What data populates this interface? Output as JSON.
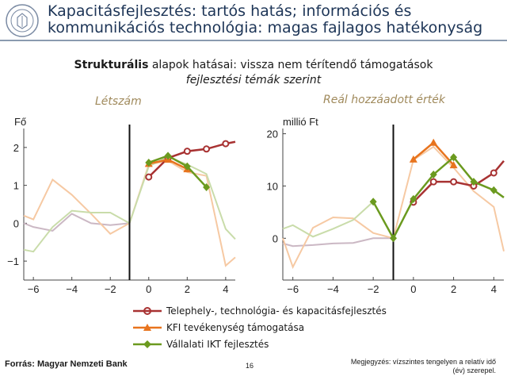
{
  "slide": {
    "title_line1": "Kapacitásfejlesztés: tartós hatás; információs és",
    "title_line2": "kommunikációs technológia: magas fajlagos hatékonyság",
    "subtitle_bold": "Strukturális",
    "subtitle_rest": " alapok hatásai: vissza nem térítendő támogatások",
    "subtitle2": "fejlesztési témák szerint",
    "source": "Forrás: Magyar Nemzeti Bank",
    "page_number": "16",
    "note": "Megjegyzés: vízszintes tengelyen a relatív idő (év) szerepel."
  },
  "legend": [
    {
      "label": "Telephely-, technológia- és kapacitásfejlesztés",
      "color": "#a83232",
      "marker": "circle"
    },
    {
      "label": "KFI tevékenység támogatása",
      "color": "#e8741e",
      "marker": "triangle"
    },
    {
      "label": "Vállalati IKT fejlesztés",
      "color": "#6b9a1f",
      "marker": "diamond"
    }
  ],
  "colors": {
    "main_series": [
      "#a83232",
      "#e8741e",
      "#6b9a1f"
    ],
    "faded_series": [
      "#cbb8c4",
      "#f6c9a3",
      "#c9dcaa"
    ],
    "panel_title": "#a08a5c"
  },
  "chart_data": [
    {
      "type": "line",
      "title": "Létszám",
      "ylabel": "Fő",
      "xlim": [
        -6.5,
        4.5
      ],
      "ylim": [
        -1.5,
        2.5
      ],
      "xticks": [
        -6,
        -4,
        -2,
        0,
        2,
        4
      ],
      "xtick_labels": [
        "−6",
        "−4",
        "−2",
        "0",
        "2",
        "4"
      ],
      "yticks": [
        -1,
        0,
        1,
        2
      ],
      "ytick_labels": [
        "−1",
        "0",
        "1",
        "2"
      ],
      "vline_x": -1,
      "series": [
        {
          "x": [
            0,
            1,
            2,
            3,
            4,
            4.5
          ],
          "y": [
            1.22,
            1.72,
            1.9,
            1.96,
            2.1,
            2.15
          ]
        },
        {
          "x": [
            0,
            1,
            2
          ],
          "y": [
            1.57,
            1.68,
            1.43
          ]
        },
        {
          "x": [
            0,
            1,
            2,
            3
          ],
          "y": [
            1.6,
            1.78,
            1.5,
            0.95
          ]
        }
      ],
      "faded_series": [
        {
          "x": [
            -6.5,
            -6,
            -5,
            -4,
            -3,
            -2,
            -1
          ],
          "y": [
            0.0,
            -0.1,
            -0.2,
            0.25,
            0.0,
            -0.05,
            0.0
          ]
        },
        {
          "x": [
            -6.5,
            -6,
            -5,
            -4,
            -3,
            -2,
            -1,
            0,
            1,
            2,
            3,
            4,
            4.5
          ],
          "y": [
            0.2,
            0.1,
            1.15,
            0.75,
            0.25,
            -0.28,
            0.0,
            1.55,
            1.65,
            1.35,
            1.25,
            -1.12,
            -0.9
          ]
        },
        {
          "x": [
            -6.5,
            -6,
            -5,
            -4,
            -3,
            -2,
            -1,
            0,
            1,
            2,
            3,
            4,
            4.5
          ],
          "y": [
            -0.7,
            -0.75,
            -0.1,
            0.33,
            0.28,
            0.28,
            0.0,
            1.5,
            1.75,
            1.55,
            1.3,
            -0.15,
            -0.42
          ]
        }
      ]
    },
    {
      "type": "line",
      "title": "Reál hozzáadott érték",
      "ylabel": "millió Ft",
      "xlim": [
        -6.5,
        4.5
      ],
      "ylim": [
        -8,
        21
      ],
      "xticks": [
        -6,
        -4,
        -2,
        0,
        2,
        4
      ],
      "xtick_labels": [
        "−6",
        "−4",
        "−2",
        "0",
        "2",
        "4"
      ],
      "yticks": [
        0,
        10,
        20
      ],
      "ytick_labels": [
        "0",
        "10",
        "20"
      ],
      "vline_x": -1,
      "series": [
        {
          "x": [
            0,
            1,
            2,
            3,
            4,
            4.5
          ],
          "y": [
            6.9,
            10.8,
            10.8,
            10.0,
            12.5,
            14.8
          ]
        },
        {
          "x": [
            0,
            1,
            2
          ],
          "y": [
            15.1,
            18.3,
            14.0
          ]
        },
        {
          "x": [
            -2,
            -1,
            0,
            1,
            2,
            3,
            4,
            4.5
          ],
          "y": [
            7.0,
            0.0,
            7.5,
            12.2,
            15.5,
            10.8,
            9.2,
            7.8
          ]
        }
      ],
      "faded_series": [
        {
          "x": [
            -6.5,
            -6,
            -5,
            -4,
            -3,
            -2,
            -1
          ],
          "y": [
            -1.0,
            -1.5,
            -1.3,
            -1.0,
            -0.9,
            0.0,
            0.0
          ]
        },
        {
          "x": [
            -6.5,
            -6,
            -5,
            -4,
            -3,
            -2,
            -1,
            0,
            1,
            2,
            3,
            4,
            4.5
          ],
          "y": [
            0.0,
            -5.5,
            2.0,
            4.0,
            3.8,
            1.0,
            0.0,
            15.0,
            17.5,
            13.5,
            9.0,
            6.0,
            -2.5
          ]
        },
        {
          "x": [
            -6.5,
            -6,
            -5,
            -4,
            -3,
            -2,
            -1
          ],
          "y": [
            1.8,
            2.5,
            0.3,
            1.8,
            3.5,
            7.0,
            0.0
          ]
        }
      ]
    }
  ]
}
